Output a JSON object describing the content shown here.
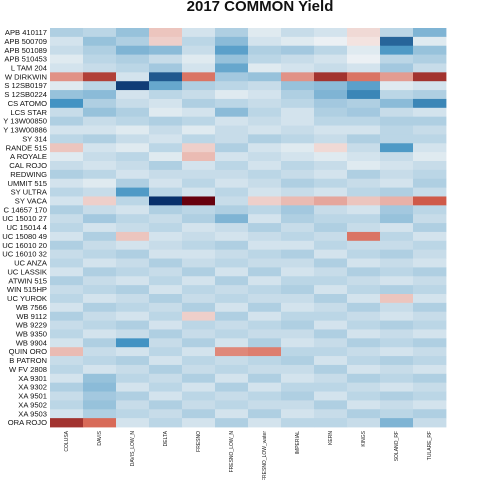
{
  "chart_data": {
    "type": "heatmap",
    "title": "2017 COMMON Yield",
    "xlabel": "",
    "ylabel": "",
    "legend": "none",
    "grid": false,
    "color_scale": {
      "low": "#08306b",
      "mid": "#f7f7f7",
      "high": "#67000d",
      "domain": [
        -3,
        3
      ]
    },
    "columns": [
      "COLUSA",
      "DAVIS",
      "DAVIS_LOW_N",
      "DELTA",
      "FRESNO",
      "FRESNO_LOW_N",
      "FRESNO_LOW_water",
      "IMPERIAL",
      "KERN",
      "KINGS",
      "SOLANO_RF",
      "TULARE_RF"
    ],
    "rows": [
      "APB 410117",
      "APB 500709",
      "APB 501089",
      "APB 510453",
      "L TAM 204",
      "W DIRKWIN",
      "S 12SB0197",
      "S 12SB0224",
      "CS ATOMO",
      "LCS STAR",
      "Y 13W00850",
      "Y 13W00886",
      "SY 314",
      "RANDE 515",
      "A ROYALE",
      "CAL ROJO",
      "REDWING",
      "UMMIT 515",
      "SY ULTRA",
      "SY VACA",
      "C 14657 170",
      "UC 15010 27",
      "UC 15014 4",
      "UC 15080 49",
      "UC 16010 20",
      "UC 16010 32",
      "UC ANZA",
      "UC LASSIK",
      "ATWIN 515",
      "WIN 515HP",
      "UC YUROK",
      "WB 7566",
      "WB 9112",
      "WB 9229",
      "WB 9350",
      "WB 9904",
      "QUIN ORO",
      "B PATRON",
      "W FV 2808",
      "XA 9301",
      "XA 9302",
      "XA 9501",
      "XA 9502",
      "XA 9503",
      "ORA ROJO"
    ],
    "values": [
      [
        -0.6,
        -0.5,
        -0.8,
        0.5,
        -0.3,
        -0.6,
        -0.2,
        -0.4,
        -0.3,
        0.3,
        -0.5,
        -1.0
      ],
      [
        -0.3,
        -0.8,
        -0.6,
        0.4,
        -0.5,
        -0.9,
        -0.3,
        -0.2,
        -0.1,
        0.2,
        -2.2,
        -0.2
      ],
      [
        -0.4,
        -0.6,
        -1.0,
        -0.9,
        -0.4,
        -1.3,
        -0.6,
        -0.7,
        -0.5,
        -0.2,
        -1.4,
        -0.8
      ],
      [
        -0.2,
        -0.5,
        -0.6,
        -0.4,
        -0.2,
        -0.8,
        -0.5,
        -0.4,
        -0.3,
        -0.1,
        -0.5,
        -0.6
      ],
      [
        -0.3,
        -0.4,
        -0.5,
        -0.7,
        -0.3,
        -1.2,
        -0.2,
        -0.3,
        -0.4,
        -0.3,
        -0.7,
        -0.4
      ],
      [
        1.0,
        2.0,
        -0.3,
        -2.4,
        1.3,
        -0.7,
        -0.8,
        1.0,
        2.2,
        1.3,
        0.9,
        2.2
      ],
      [
        -0.2,
        -0.5,
        -2.8,
        -1.2,
        -0.6,
        -0.5,
        -0.4,
        -0.8,
        -0.9,
        -1.3,
        -0.2,
        -0.3
      ],
      [
        -0.8,
        -0.9,
        -0.3,
        -0.5,
        -0.4,
        -0.2,
        -0.3,
        -0.6,
        -1.0,
        -1.7,
        -0.5,
        -0.6
      ],
      [
        -1.5,
        -0.6,
        -0.4,
        -0.3,
        -0.6,
        -0.5,
        -0.4,
        -0.5,
        -0.7,
        -0.6,
        -0.9,
        -1.7
      ],
      [
        -0.4,
        -0.8,
        -0.6,
        -0.2,
        -0.3,
        -0.9,
        -0.5,
        -0.3,
        -0.6,
        -0.7,
        -0.4,
        -0.3
      ],
      [
        -0.6,
        -0.4,
        -0.5,
        -0.6,
        -0.5,
        -0.3,
        -0.4,
        -0.3,
        -0.5,
        -0.5,
        -0.6,
        -0.6
      ],
      [
        -0.3,
        -0.3,
        -0.2,
        -0.4,
        -0.2,
        -0.4,
        -0.3,
        -0.4,
        -0.3,
        -0.3,
        -0.5,
        -0.4
      ],
      [
        -0.5,
        -0.6,
        -0.4,
        -0.3,
        -0.5,
        -0.4,
        -0.6,
        -0.5,
        -0.4,
        -0.6,
        -0.5,
        -0.5
      ],
      [
        0.5,
        -0.3,
        -0.2,
        -0.5,
        0.4,
        -0.6,
        -0.3,
        -0.2,
        0.3,
        -0.4,
        -1.4,
        -0.3
      ],
      [
        -0.2,
        -0.4,
        -0.5,
        -0.2,
        0.6,
        -0.3,
        -0.4,
        -0.3,
        -0.2,
        -0.3,
        -0.4,
        -0.2
      ],
      [
        -0.4,
        -0.3,
        -0.4,
        -0.6,
        -0.3,
        -0.5,
        -0.3,
        -0.5,
        -0.4,
        -0.2,
        -0.3,
        -0.4
      ],
      [
        -0.6,
        -0.5,
        -0.3,
        -0.4,
        -0.4,
        -0.4,
        -0.5,
        -0.4,
        -0.3,
        -0.6,
        -0.4,
        -0.5
      ],
      [
        -0.3,
        -0.2,
        -0.6,
        -0.3,
        -0.5,
        -0.3,
        -0.4,
        -0.6,
        -0.5,
        -0.4,
        -0.3,
        -0.6
      ],
      [
        -0.5,
        -0.4,
        -1.4,
        -0.5,
        -0.3,
        -0.5,
        -0.3,
        -0.4,
        -0.3,
        -0.5,
        -0.6,
        -0.4
      ],
      [
        -0.3,
        0.4,
        -0.5,
        -3.0,
        3.0,
        -0.4,
        0.4,
        0.6,
        0.8,
        0.5,
        0.7,
        1.6
      ],
      [
        -0.6,
        -0.4,
        -0.3,
        -0.6,
        -0.5,
        -0.6,
        -0.5,
        -0.7,
        -0.4,
        -0.3,
        -0.7,
        -0.5
      ],
      [
        -0.4,
        -0.7,
        -0.5,
        -0.4,
        -0.6,
        -1.0,
        -0.3,
        -0.6,
        -0.5,
        -0.5,
        -0.8,
        -0.4
      ],
      [
        -0.5,
        -0.3,
        -0.4,
        -0.5,
        -0.3,
        -0.4,
        -0.6,
        -0.4,
        -0.6,
        -0.4,
        -0.3,
        -0.6
      ],
      [
        -0.3,
        -0.6,
        0.5,
        -0.3,
        -0.4,
        -0.3,
        -0.4,
        -0.5,
        -0.4,
        1.3,
        -0.5,
        -0.3
      ],
      [
        -0.6,
        -0.4,
        -0.3,
        -0.4,
        -0.5,
        -0.6,
        -0.3,
        -0.3,
        -0.5,
        -0.4,
        -0.4,
        -0.5
      ],
      [
        -0.4,
        -0.5,
        -0.6,
        -0.3,
        -0.3,
        -0.4,
        -0.5,
        -0.6,
        -0.3,
        -0.5,
        -0.6,
        -0.4
      ],
      [
        -0.5,
        -0.3,
        -0.4,
        -0.6,
        -0.4,
        -0.5,
        -0.4,
        -0.4,
        -0.6,
        -0.3,
        -0.4,
        -0.3
      ],
      [
        -0.3,
        -0.6,
        -0.5,
        -0.4,
        -0.6,
        -0.3,
        -0.6,
        -0.3,
        -0.4,
        -0.6,
        -0.5,
        -0.6
      ],
      [
        -0.6,
        -0.4,
        -0.3,
        -0.5,
        -0.3,
        -0.6,
        -0.3,
        -0.5,
        -0.5,
        -0.4,
        -0.3,
        -0.4
      ],
      [
        -0.4,
        -0.5,
        -0.6,
        -0.3,
        -0.5,
        -0.4,
        -0.5,
        -0.6,
        -0.3,
        -0.5,
        -0.6,
        -0.5
      ],
      [
        -0.5,
        -0.3,
        -0.4,
        -0.6,
        -0.4,
        -0.5,
        -0.4,
        -0.4,
        -0.6,
        -0.3,
        0.5,
        -0.3
      ],
      [
        -0.3,
        -0.6,
        -0.5,
        -0.4,
        -0.6,
        -0.3,
        -0.6,
        -0.3,
        -0.4,
        -0.6,
        -0.4,
        -0.6
      ],
      [
        -0.6,
        -0.4,
        -0.3,
        -0.5,
        0.4,
        -0.6,
        -0.3,
        -0.5,
        -0.5,
        -0.4,
        -0.3,
        -0.4
      ],
      [
        -0.4,
        -0.5,
        -0.6,
        -0.3,
        -0.5,
        -0.4,
        -0.5,
        -0.6,
        -0.3,
        -0.5,
        -0.6,
        -0.5
      ],
      [
        -0.5,
        -0.3,
        -0.4,
        -0.6,
        -0.4,
        -0.5,
        -0.4,
        -0.4,
        -0.6,
        -0.3,
        -0.4,
        -0.3
      ],
      [
        -0.3,
        -0.6,
        -1.5,
        -0.4,
        -0.6,
        -0.3,
        -0.6,
        -0.3,
        -0.4,
        -0.6,
        -0.5,
        -0.6
      ],
      [
        0.6,
        -0.4,
        -0.3,
        -0.5,
        -0.3,
        1.1,
        1.2,
        -0.5,
        -0.5,
        -0.4,
        -0.3,
        -0.4
      ],
      [
        -0.4,
        -0.5,
        -0.6,
        -0.3,
        -0.5,
        -0.4,
        -0.5,
        -0.6,
        -0.3,
        -0.5,
        -0.6,
        -0.5
      ],
      [
        -0.5,
        -0.3,
        -0.4,
        -0.6,
        -0.4,
        -0.5,
        -0.4,
        -0.4,
        -0.6,
        -0.3,
        -0.4,
        -0.3
      ],
      [
        -0.3,
        -0.8,
        -0.5,
        -0.4,
        -0.6,
        -0.3,
        -0.6,
        -0.3,
        -0.4,
        -0.6,
        -0.5,
        -0.6
      ],
      [
        -0.6,
        -0.9,
        -0.3,
        -0.5,
        -0.3,
        -0.6,
        -0.3,
        -0.5,
        -0.5,
        -0.4,
        -0.3,
        -0.4
      ],
      [
        -0.4,
        -0.7,
        -0.6,
        -0.3,
        -0.5,
        -0.4,
        -0.5,
        -0.6,
        -0.3,
        -0.5,
        -0.6,
        -0.5
      ],
      [
        -0.5,
        -0.8,
        -0.4,
        -0.6,
        -0.4,
        -0.5,
        -0.4,
        -0.4,
        -0.6,
        -0.3,
        -0.4,
        -0.3
      ],
      [
        -0.3,
        -0.6,
        -0.5,
        -0.4,
        -0.6,
        -0.3,
        -0.6,
        -0.3,
        -0.4,
        -0.6,
        -0.5,
        -0.6
      ],
      [
        2.2,
        1.4,
        -0.3,
        -0.5,
        -0.3,
        -0.6,
        -0.3,
        -0.5,
        -0.5,
        -0.4,
        -1.0,
        -0.4
      ]
    ]
  }
}
